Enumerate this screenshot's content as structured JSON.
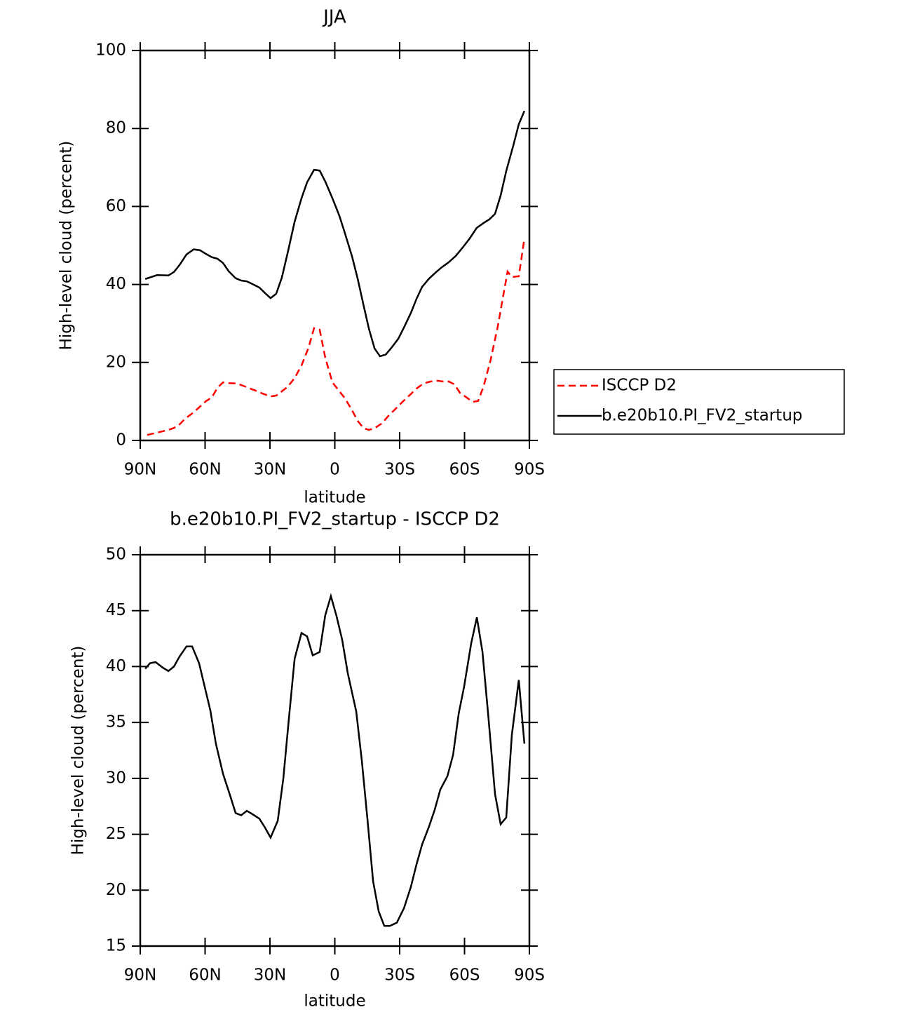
{
  "chart_data": [
    {
      "type": "line",
      "title": "JJA",
      "xlabel": "latitude",
      "ylabel": "High-level cloud (percent)",
      "xlim": [
        90,
        -90
      ],
      "xticks": [
        {
          "value": 90,
          "label": "90N"
        },
        {
          "value": 60,
          "label": "60N"
        },
        {
          "value": 30,
          "label": "30N"
        },
        0,
        {
          "value": -30,
          "label": "30S"
        },
        {
          "value": -60,
          "label": "60S"
        },
        {
          "value": -90,
          "label": "90S"
        }
      ],
      "ylim": [
        0,
        100
      ],
      "yticks": [
        0,
        20,
        40,
        60,
        80,
        100
      ],
      "legend": "right",
      "series": [
        {
          "name": "ISCCP D2",
          "color": "#ff0000",
          "style": "dashed",
          "x": [
            86.8,
            82.2,
            77.0,
            74.4,
            71.8,
            69.2,
            65.3,
            62.1,
            59.5,
            56.9,
            54.3,
            51.7,
            49.1,
            45.9,
            43.3,
            40.1,
            36.8,
            32.9,
            29.7,
            27.1,
            24.5,
            21.9,
            18.6,
            15.4,
            12.2,
            9.6,
            7.0,
            4.4,
            1.1,
            -2.1,
            -4.7,
            -8.0,
            -10.6,
            -13.2,
            -15.7,
            -18.3,
            -21.6,
            -24.8,
            -28.1,
            -31.3,
            -35.2,
            -37.8,
            -41.0,
            -44.3,
            -47.5,
            -50.1,
            -52.7,
            -55.3,
            -57.9,
            -60.5,
            -63.7,
            -66.3,
            -68.9,
            -72.1,
            -75.4,
            -77.9,
            -79.9,
            -81.9,
            -85.1,
            -87.7
          ],
          "values": [
            1.4,
            2.0,
            2.7,
            3.2,
            4.1,
            5.6,
            7.2,
            8.8,
            10.1,
            11.0,
            13.5,
            14.9,
            14.7,
            14.6,
            14.2,
            13.5,
            12.8,
            11.9,
            11.3,
            11.5,
            12.6,
            13.7,
            16.0,
            19.2,
            23.7,
            28.8,
            28.4,
            21.2,
            14.9,
            12.6,
            10.8,
            7.7,
            5.0,
            3.2,
            2.7,
            3.1,
            4.3,
            6.3,
            8.1,
            9.9,
            11.9,
            13.3,
            14.6,
            15.1,
            15.3,
            15.1,
            15.1,
            14.4,
            12.2,
            11.2,
            9.9,
            10.1,
            14.0,
            20.7,
            29.3,
            37.1,
            43.3,
            41.9,
            42.1,
            51.8
          ]
        },
        {
          "name": "b.e20b10.PI_FV2_startup",
          "color": "#000000",
          "style": "solid",
          "x": [
            87.7,
            82.2,
            77.0,
            74.4,
            71.8,
            68.6,
            65.3,
            62.4,
            59.8,
            56.9,
            54.3,
            51.7,
            49.1,
            45.9,
            43.3,
            40.7,
            38.1,
            34.9,
            32.3,
            29.7,
            27.1,
            24.5,
            21.6,
            18.6,
            15.4,
            12.8,
            9.6,
            7.0,
            4.4,
            1.1,
            -2.1,
            -4.7,
            -8.0,
            -10.6,
            -13.2,
            -15.8,
            -18.4,
            -20.9,
            -23.5,
            -26.1,
            -29.4,
            -32.0,
            -35.2,
            -37.8,
            -40.4,
            -43.6,
            -46.9,
            -49.5,
            -52.7,
            -55.9,
            -59.2,
            -62.4,
            -65.6,
            -68.9,
            -71.5,
            -74.1,
            -76.7,
            -79.3,
            -82.6,
            -85.1,
            -87.7
          ],
          "values": [
            41.4,
            42.4,
            42.3,
            43.2,
            45.0,
            47.7,
            49.0,
            48.8,
            47.9,
            47.0,
            46.6,
            45.5,
            43.4,
            41.6,
            41.0,
            40.8,
            40.1,
            39.2,
            37.8,
            36.5,
            37.6,
            41.8,
            48.6,
            56.1,
            62.1,
            66.2,
            69.4,
            69.2,
            66.4,
            62.1,
            57.6,
            53.1,
            47.1,
            41.4,
            34.9,
            28.6,
            23.6,
            21.6,
            22.0,
            23.7,
            26.1,
            29.0,
            32.7,
            36.3,
            39.4,
            41.5,
            43.2,
            44.4,
            45.7,
            47.3,
            49.5,
            51.8,
            54.5,
            55.8,
            56.7,
            58.1,
            62.8,
            69.1,
            75.7,
            81.1,
            84.5
          ]
        }
      ]
    },
    {
      "type": "line",
      "title": "b.e20b10.PI_FV2_startup - ISCCP D2",
      "xlabel": "latitude",
      "ylabel": "High-level cloud (percent)",
      "xlim": [
        90,
        -90
      ],
      "xticks": [
        {
          "value": 90,
          "label": "90N"
        },
        {
          "value": 60,
          "label": "60N"
        },
        {
          "value": 30,
          "label": "30N"
        },
        0,
        {
          "value": -30,
          "label": "30S"
        },
        {
          "value": -60,
          "label": "60S"
        },
        {
          "value": -90,
          "label": "90S"
        }
      ],
      "ylim": [
        15,
        50
      ],
      "yticks": [
        15,
        20,
        25,
        30,
        35,
        40,
        45,
        50
      ],
      "series": [
        {
          "color": "#000000",
          "style": "solid",
          "x": [
            87.7,
            85.5,
            82.9,
            79.6,
            77.0,
            74.4,
            71.8,
            68.6,
            66.0,
            62.8,
            60.2,
            57.6,
            55.0,
            51.7,
            48.5,
            45.9,
            43.3,
            40.7,
            38.1,
            34.9,
            32.3,
            29.7,
            26.4,
            23.8,
            21.2,
            18.6,
            15.4,
            12.8,
            10.2,
            7.0,
            4.4,
            1.8,
            -0.8,
            -3.4,
            -6.0,
            -9.9,
            -12.5,
            -15.1,
            -17.7,
            -20.3,
            -22.9,
            -25.5,
            -28.7,
            -32.0,
            -35.2,
            -37.8,
            -40.4,
            -43.6,
            -46.2,
            -48.8,
            -52.1,
            -54.7,
            -57.3,
            -59.8,
            -63.1,
            -65.7,
            -68.3,
            -70.9,
            -74.1,
            -76.7,
            -79.3,
            -81.9,
            -85.1,
            -87.7
          ],
          "values": [
            39.8,
            40.3,
            40.4,
            39.9,
            39.6,
            40.0,
            40.9,
            41.8,
            41.8,
            40.3,
            38.2,
            36.1,
            33.1,
            30.4,
            28.5,
            26.9,
            26.7,
            27.1,
            26.8,
            26.4,
            25.6,
            24.7,
            26.2,
            30.0,
            35.4,
            40.7,
            43.0,
            42.7,
            41.0,
            41.3,
            44.6,
            46.3,
            44.5,
            42.4,
            39.4,
            36.0,
            31.6,
            26.3,
            20.8,
            18.1,
            16.8,
            16.8,
            17.1,
            18.4,
            20.3,
            22.3,
            24.1,
            25.7,
            27.2,
            29.0,
            30.2,
            32.1,
            35.8,
            38.2,
            42.1,
            44.4,
            41.3,
            35.8,
            28.6,
            25.9,
            26.5,
            33.9,
            38.8,
            33.1
          ]
        }
      ]
    }
  ]
}
